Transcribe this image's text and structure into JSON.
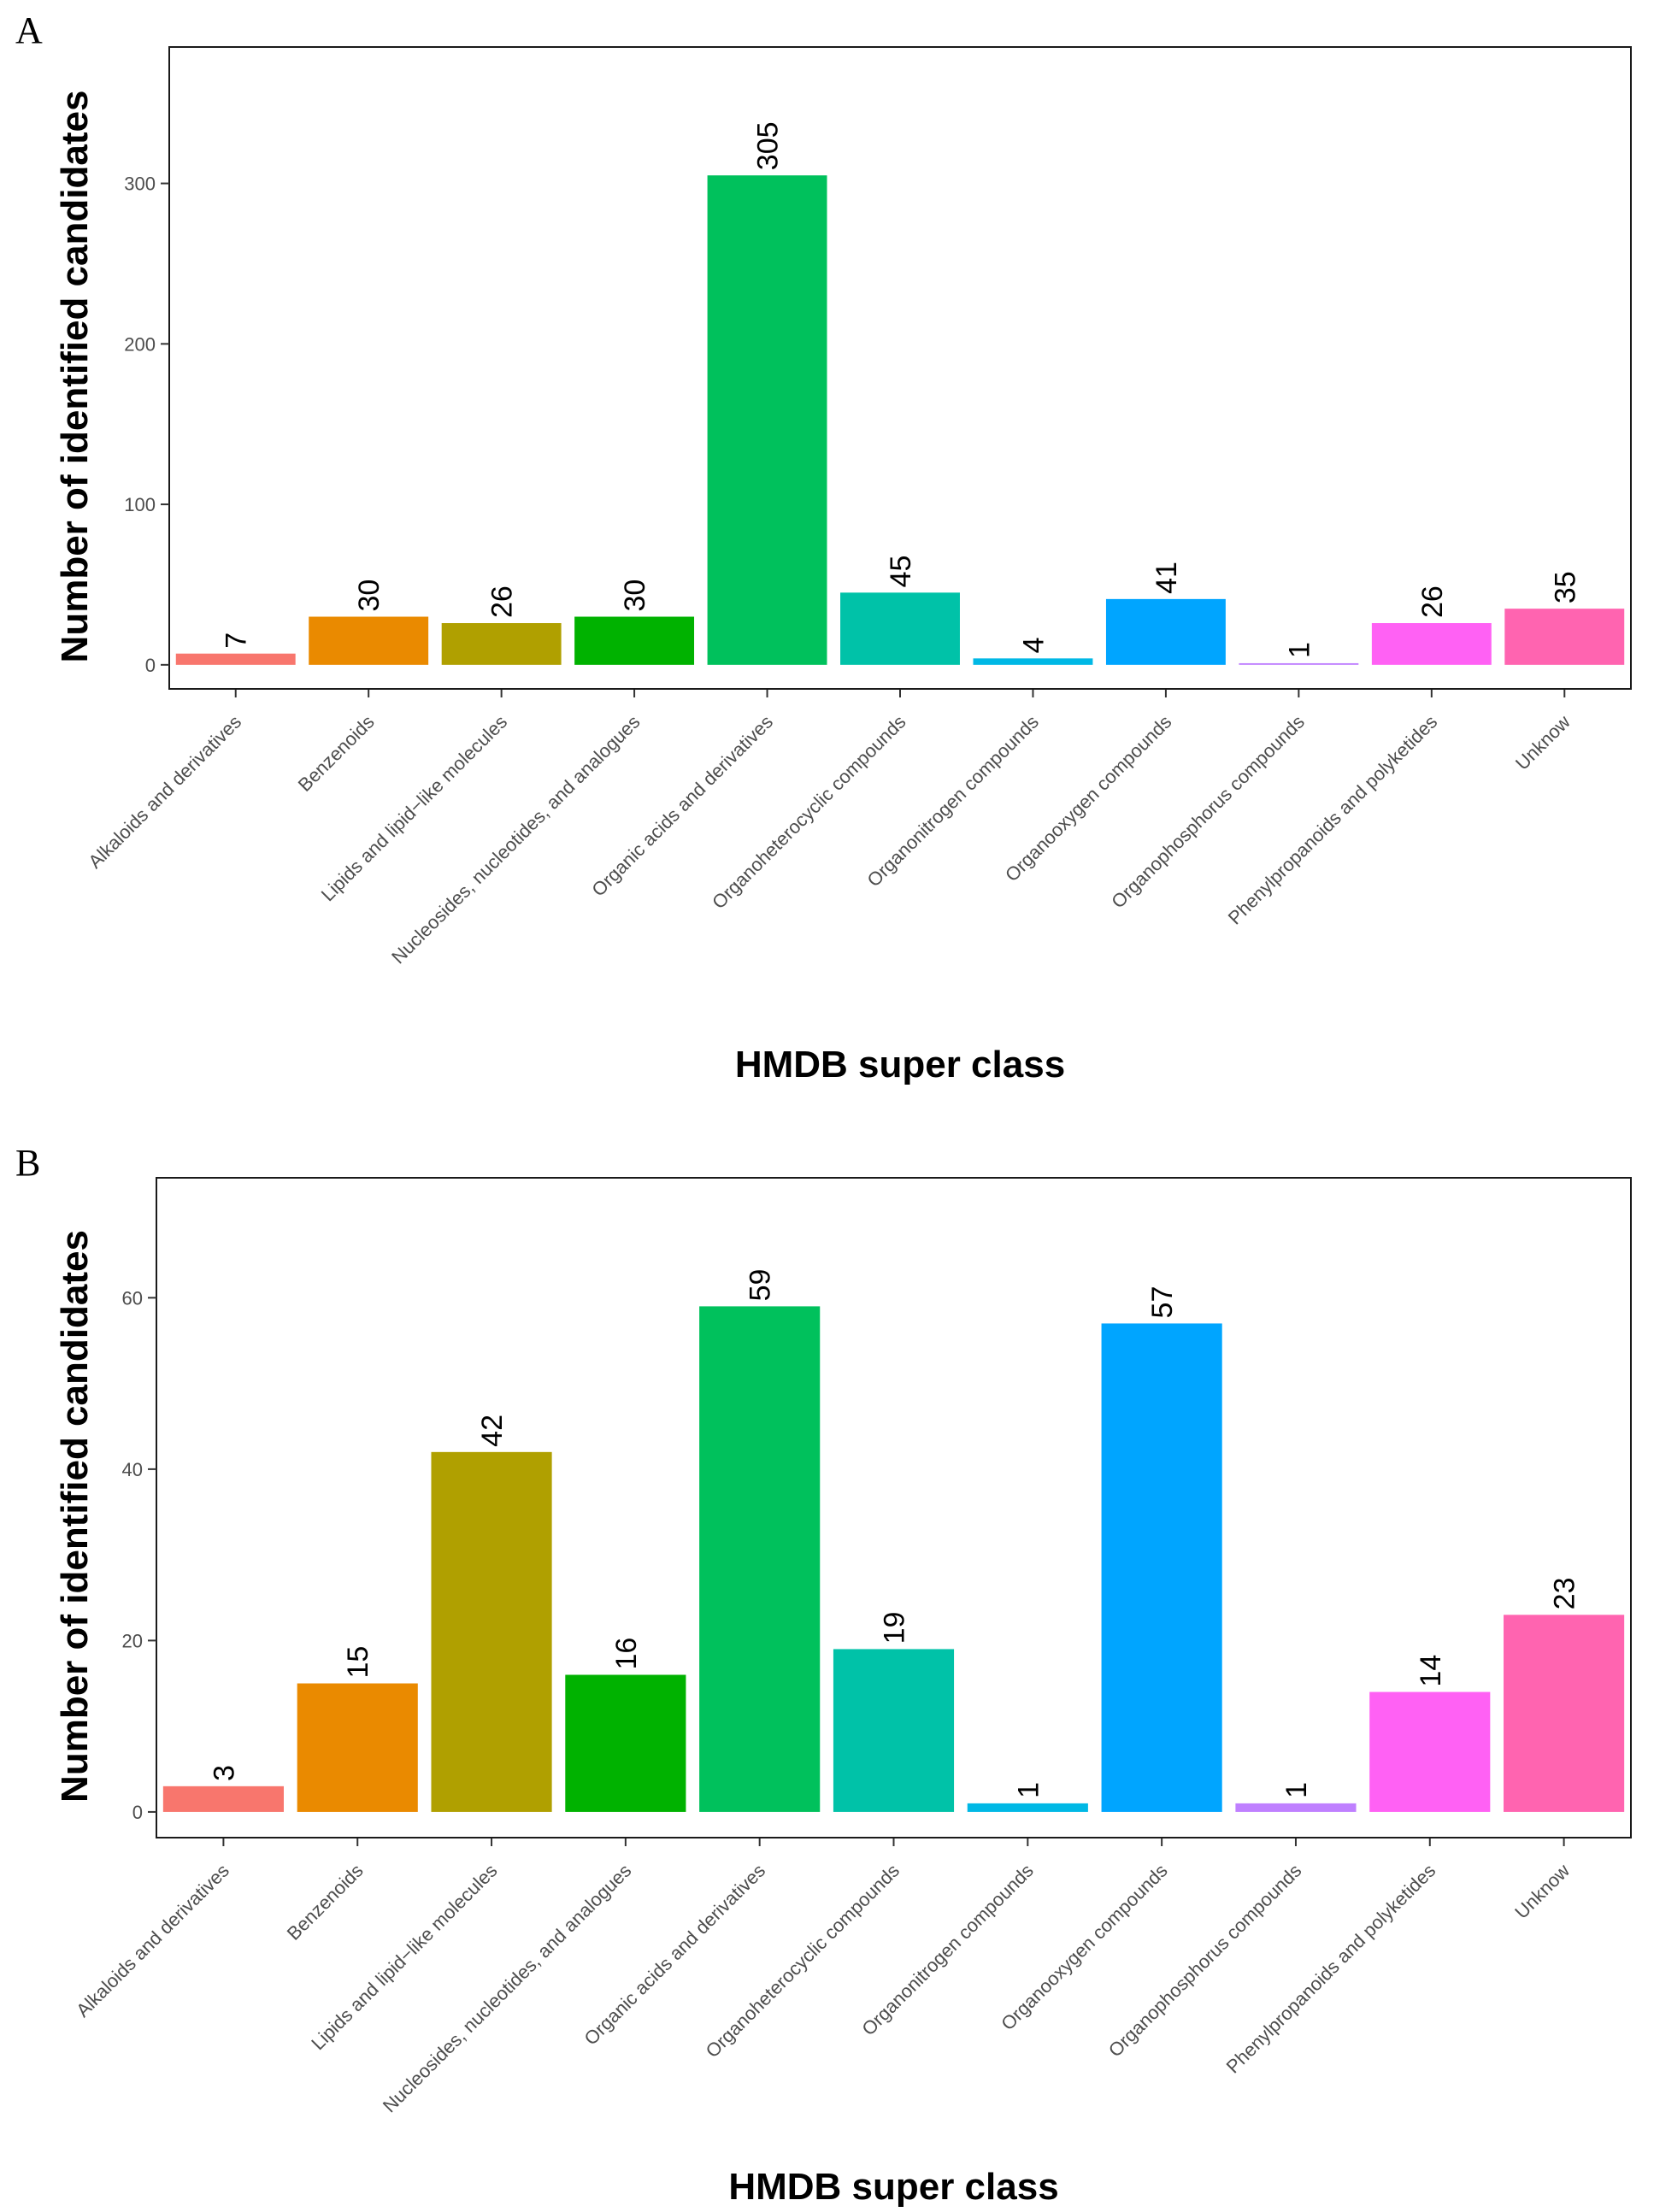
{
  "chart_data": [
    {
      "panel": "A",
      "type": "bar",
      "xlabel": "HMDB super class",
      "ylabel": "Number of identified candidates",
      "ylim": [
        -15,
        385
      ],
      "yticks": [
        0,
        100,
        200,
        300
      ],
      "grid": false,
      "legend": "none",
      "categories": [
        "Alkaloids and derivatives",
        "Benzenoids",
        "Lipids and lipid−like molecules",
        "Nucleosides, nucleotides, and analogues",
        "Organic acids and derivatives",
        "Organoheterocyclic compounds",
        "Organonitrogen compounds",
        "Organooxygen compounds",
        "Organophosphorus compounds",
        "Phenylpropanoids and polyketides",
        "Unknow"
      ],
      "values": [
        7,
        30,
        26,
        30,
        305,
        45,
        4,
        41,
        1,
        26,
        35
      ],
      "colors": [
        "#F8766D",
        "#EA8A00",
        "#B0A000",
        "#00B200",
        "#00C15C",
        "#00C2A8",
        "#00B8E5",
        "#00A5FF",
        "#BF80FF",
        "#FF61F4",
        "#FF64B0"
      ]
    },
    {
      "panel": "B",
      "type": "bar",
      "xlabel": "HMDB super class",
      "ylabel": "Number of identified candidates",
      "ylim": [
        -3,
        74
      ],
      "yticks": [
        0,
        20,
        40,
        60
      ],
      "grid": false,
      "legend": "none",
      "categories": [
        "Alkaloids and derivatives",
        "Benzenoids",
        "Lipids and lipid−like molecules",
        "Nucleosides, nucleotides, and analogues",
        "Organic acids and derivatives",
        "Organoheterocyclic compounds",
        "Organonitrogen compounds",
        "Organooxygen compounds",
        "Organophosphorus compounds",
        "Phenylpropanoids and polyketides",
        "Unknow"
      ],
      "values": [
        3,
        15,
        42,
        16,
        59,
        19,
        1,
        57,
        1,
        14,
        23
      ],
      "colors": [
        "#F8766D",
        "#EA8A00",
        "#B0A000",
        "#00B200",
        "#00C15C",
        "#00C2A8",
        "#00B8E5",
        "#00A5FF",
        "#BF80FF",
        "#FF61F4",
        "#FF64B0"
      ]
    }
  ]
}
